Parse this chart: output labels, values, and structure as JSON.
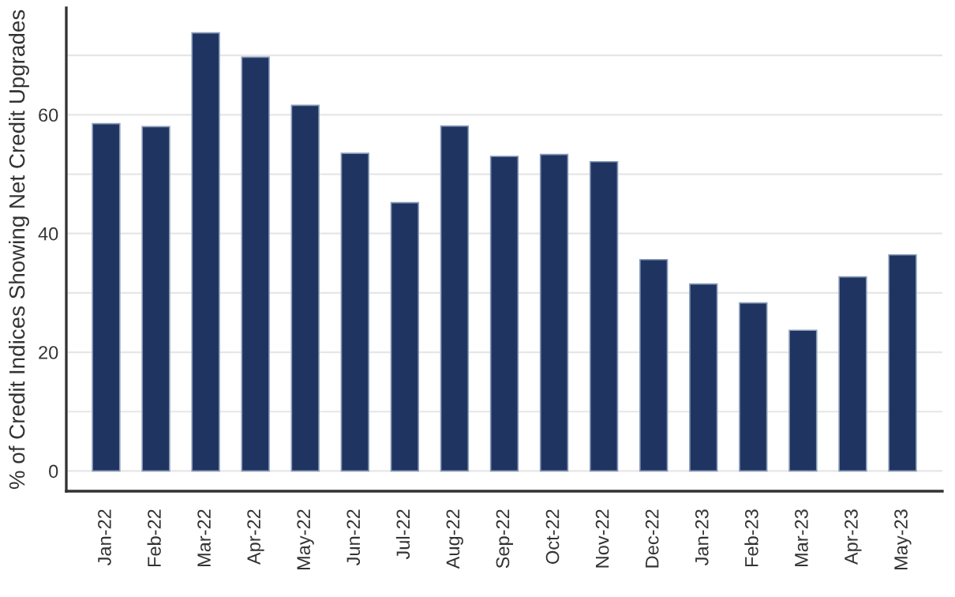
{
  "chart_data": {
    "type": "bar",
    "ylabel": "% of Credit Indices Showing Net Credit Upgrades",
    "categories": [
      "Jan-22",
      "Feb-22",
      "Mar-22",
      "Apr-22",
      "May-22",
      "Jun-22",
      "Jul-22",
      "Aug-22",
      "Sep-22",
      "Oct-22",
      "Nov-22",
      "Dec-22",
      "Jan-23",
      "Feb-23",
      "Mar-23",
      "Apr-23",
      "May-23"
    ],
    "values": [
      58.5,
      58.0,
      73.8,
      69.7,
      61.6,
      53.5,
      45.2,
      58.1,
      53.0,
      53.3,
      52.1,
      35.6,
      31.5,
      28.3,
      23.7,
      32.7,
      36.4
    ],
    "color": "#1f3461",
    "ylim": [
      -3.4,
      78
    ],
    "yticks": [
      0,
      {
        "value": 10,
        "label": null
      },
      20,
      {
        "value": 30,
        "label": null
      },
      40,
      {
        "value": 50,
        "label": null
      },
      60,
      {
        "value": 70,
        "label": null
      }
    ],
    "grid": "y"
  }
}
